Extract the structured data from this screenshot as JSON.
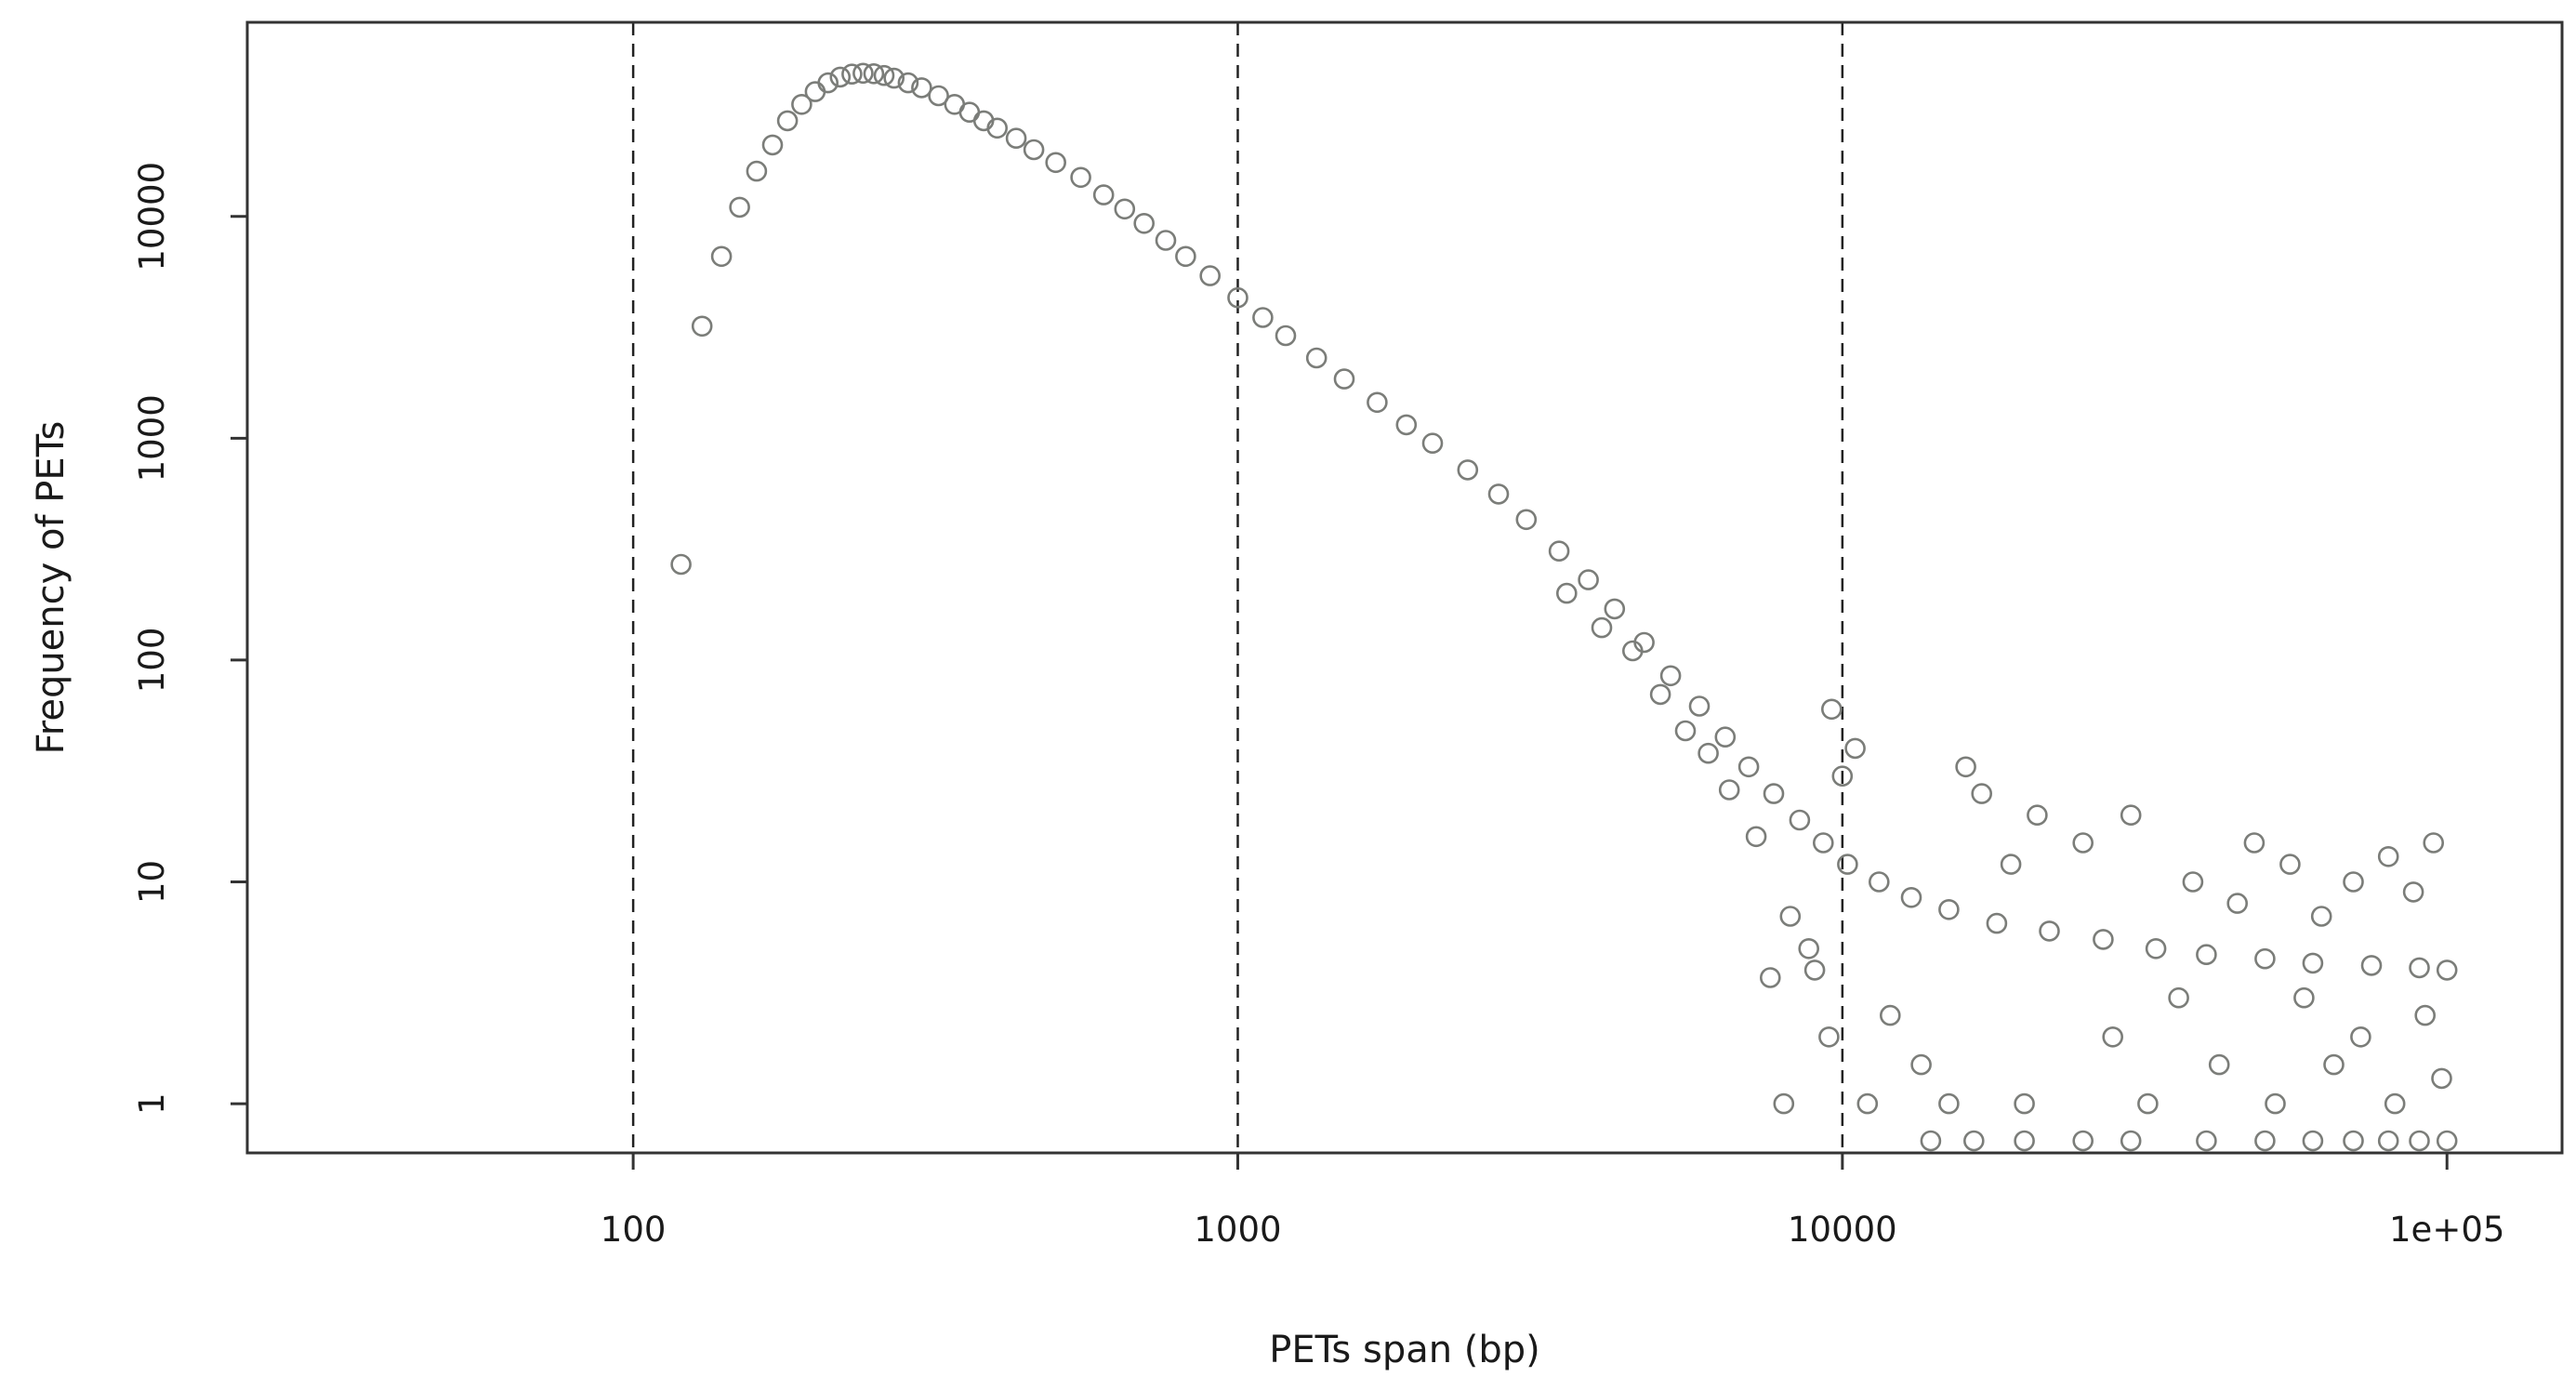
{
  "chart_data": {
    "type": "scatter",
    "title": "",
    "xlabel": "PETs span (bp)",
    "ylabel": "Frequency of PETs",
    "x_scale": "log",
    "y_scale": "log",
    "xlim": [
      23,
      155000
    ],
    "ylim": [
      0.6,
      75000
    ],
    "x_ticks": [
      100,
      1000,
      10000,
      100000
    ],
    "x_tick_labels": [
      "100",
      "1000",
      "10000",
      "1e+05"
    ],
    "y_ticks": [
      1,
      10,
      100,
      1000,
      10000
    ],
    "y_tick_labels": [
      "1",
      "10",
      "100",
      "1000",
      "10000"
    ],
    "reference_lines_x": [
      100,
      1000,
      10000
    ],
    "reference_line_style": "dashed",
    "grid": false,
    "legend": "none",
    "point_shape": "open-circle",
    "point_color": "#7b7d79",
    "points": [
      [
        120,
        270
      ],
      [
        130,
        3200
      ],
      [
        140,
        6600
      ],
      [
        150,
        11000
      ],
      [
        160,
        16000
      ],
      [
        170,
        21000
      ],
      [
        180,
        27000
      ],
      [
        190,
        32000
      ],
      [
        200,
        36500
      ],
      [
        210,
        40000
      ],
      [
        220,
        42500
      ],
      [
        230,
        43800
      ],
      [
        240,
        44200
      ],
      [
        250,
        44000
      ],
      [
        260,
        43200
      ],
      [
        270,
        42000
      ],
      [
        285,
        40000
      ],
      [
        300,
        38000
      ],
      [
        320,
        35000
      ],
      [
        340,
        32000
      ],
      [
        360,
        29500
      ],
      [
        380,
        27000
      ],
      [
        400,
        25000
      ],
      [
        430,
        22500
      ],
      [
        460,
        20000
      ],
      [
        500,
        17500
      ],
      [
        550,
        15000
      ],
      [
        600,
        12500
      ],
      [
        650,
        10800
      ],
      [
        700,
        9300
      ],
      [
        760,
        7800
      ],
      [
        820,
        6600
      ],
      [
        900,
        5400
      ],
      [
        1000,
        4300
      ],
      [
        1100,
        3500
      ],
      [
        1200,
        2900
      ],
      [
        1350,
        2300
      ],
      [
        1500,
        1850
      ],
      [
        1700,
        1450
      ],
      [
        1900,
        1150
      ],
      [
        2100,
        950
      ],
      [
        2400,
        720
      ],
      [
        2700,
        560
      ],
      [
        3000,
        430
      ],
      [
        3400,
        310
      ],
      [
        3800,
        230
      ],
      [
        4200,
        170
      ],
      [
        4700,
        120
      ],
      [
        5200,
        85
      ],
      [
        5800,
        62
      ],
      [
        6400,
        45
      ],
      [
        7000,
        33
      ],
      [
        7700,
        25
      ],
      [
        8500,
        19
      ],
      [
        9300,
        15
      ],
      [
        10200,
        12
      ],
      [
        11500,
        10
      ],
      [
        13000,
        8.5
      ],
      [
        15000,
        7.5
      ],
      [
        18000,
        6.5
      ],
      [
        22000,
        6
      ],
      [
        27000,
        5.5
      ],
      [
        33000,
        5
      ],
      [
        40000,
        4.7
      ],
      [
        50000,
        4.5
      ],
      [
        60000,
        4.3
      ],
      [
        75000,
        4.2
      ],
      [
        90000,
        4.1
      ],
      [
        100000,
        4
      ],
      [
        3500,
        200
      ],
      [
        4000,
        140
      ],
      [
        4500,
        110
      ],
      [
        5000,
        70
      ],
      [
        5500,
        48
      ],
      [
        6000,
        38
      ],
      [
        6500,
        26
      ],
      [
        7200,
        16
      ],
      [
        7600,
        3.7
      ],
      [
        8000,
        1
      ],
      [
        8200,
        7
      ],
      [
        8800,
        5
      ],
      [
        9000,
        4
      ],
      [
        9500,
        2
      ],
      [
        9600,
        60
      ],
      [
        10000,
        30
      ],
      [
        10500,
        40
      ],
      [
        11000,
        1
      ],
      [
        12000,
        2.5
      ],
      [
        13500,
        1.5
      ],
      [
        15000,
        1
      ],
      [
        16000,
        33
      ],
      [
        17000,
        25
      ],
      [
        19000,
        12
      ],
      [
        20000,
        1
      ],
      [
        21000,
        20
      ],
      [
        25000,
        15
      ],
      [
        28000,
        2
      ],
      [
        30000,
        20
      ],
      [
        32000,
        1
      ],
      [
        36000,
        3
      ],
      [
        38000,
        10
      ],
      [
        42000,
        1.5
      ],
      [
        45000,
        8
      ],
      [
        48000,
        15
      ],
      [
        52000,
        1
      ],
      [
        55000,
        12
      ],
      [
        58000,
        3
      ],
      [
        62000,
        7
      ],
      [
        65000,
        1.5
      ],
      [
        70000,
        10
      ],
      [
        72000,
        2
      ],
      [
        80000,
        13
      ],
      [
        82000,
        1
      ],
      [
        88000,
        9
      ],
      [
        92000,
        2.5
      ],
      [
        95000,
        15
      ],
      [
        98000,
        1.3
      ],
      [
        14000,
        0.68
      ],
      [
        16500,
        0.68
      ],
      [
        20000,
        0.68
      ],
      [
        25000,
        0.68
      ],
      [
        30000,
        0.68
      ],
      [
        40000,
        0.68
      ],
      [
        50000,
        0.68
      ],
      [
        60000,
        0.68
      ],
      [
        70000,
        0.68
      ],
      [
        80000,
        0.68
      ],
      [
        90000,
        0.68
      ],
      [
        100000,
        0.68
      ]
    ]
  }
}
